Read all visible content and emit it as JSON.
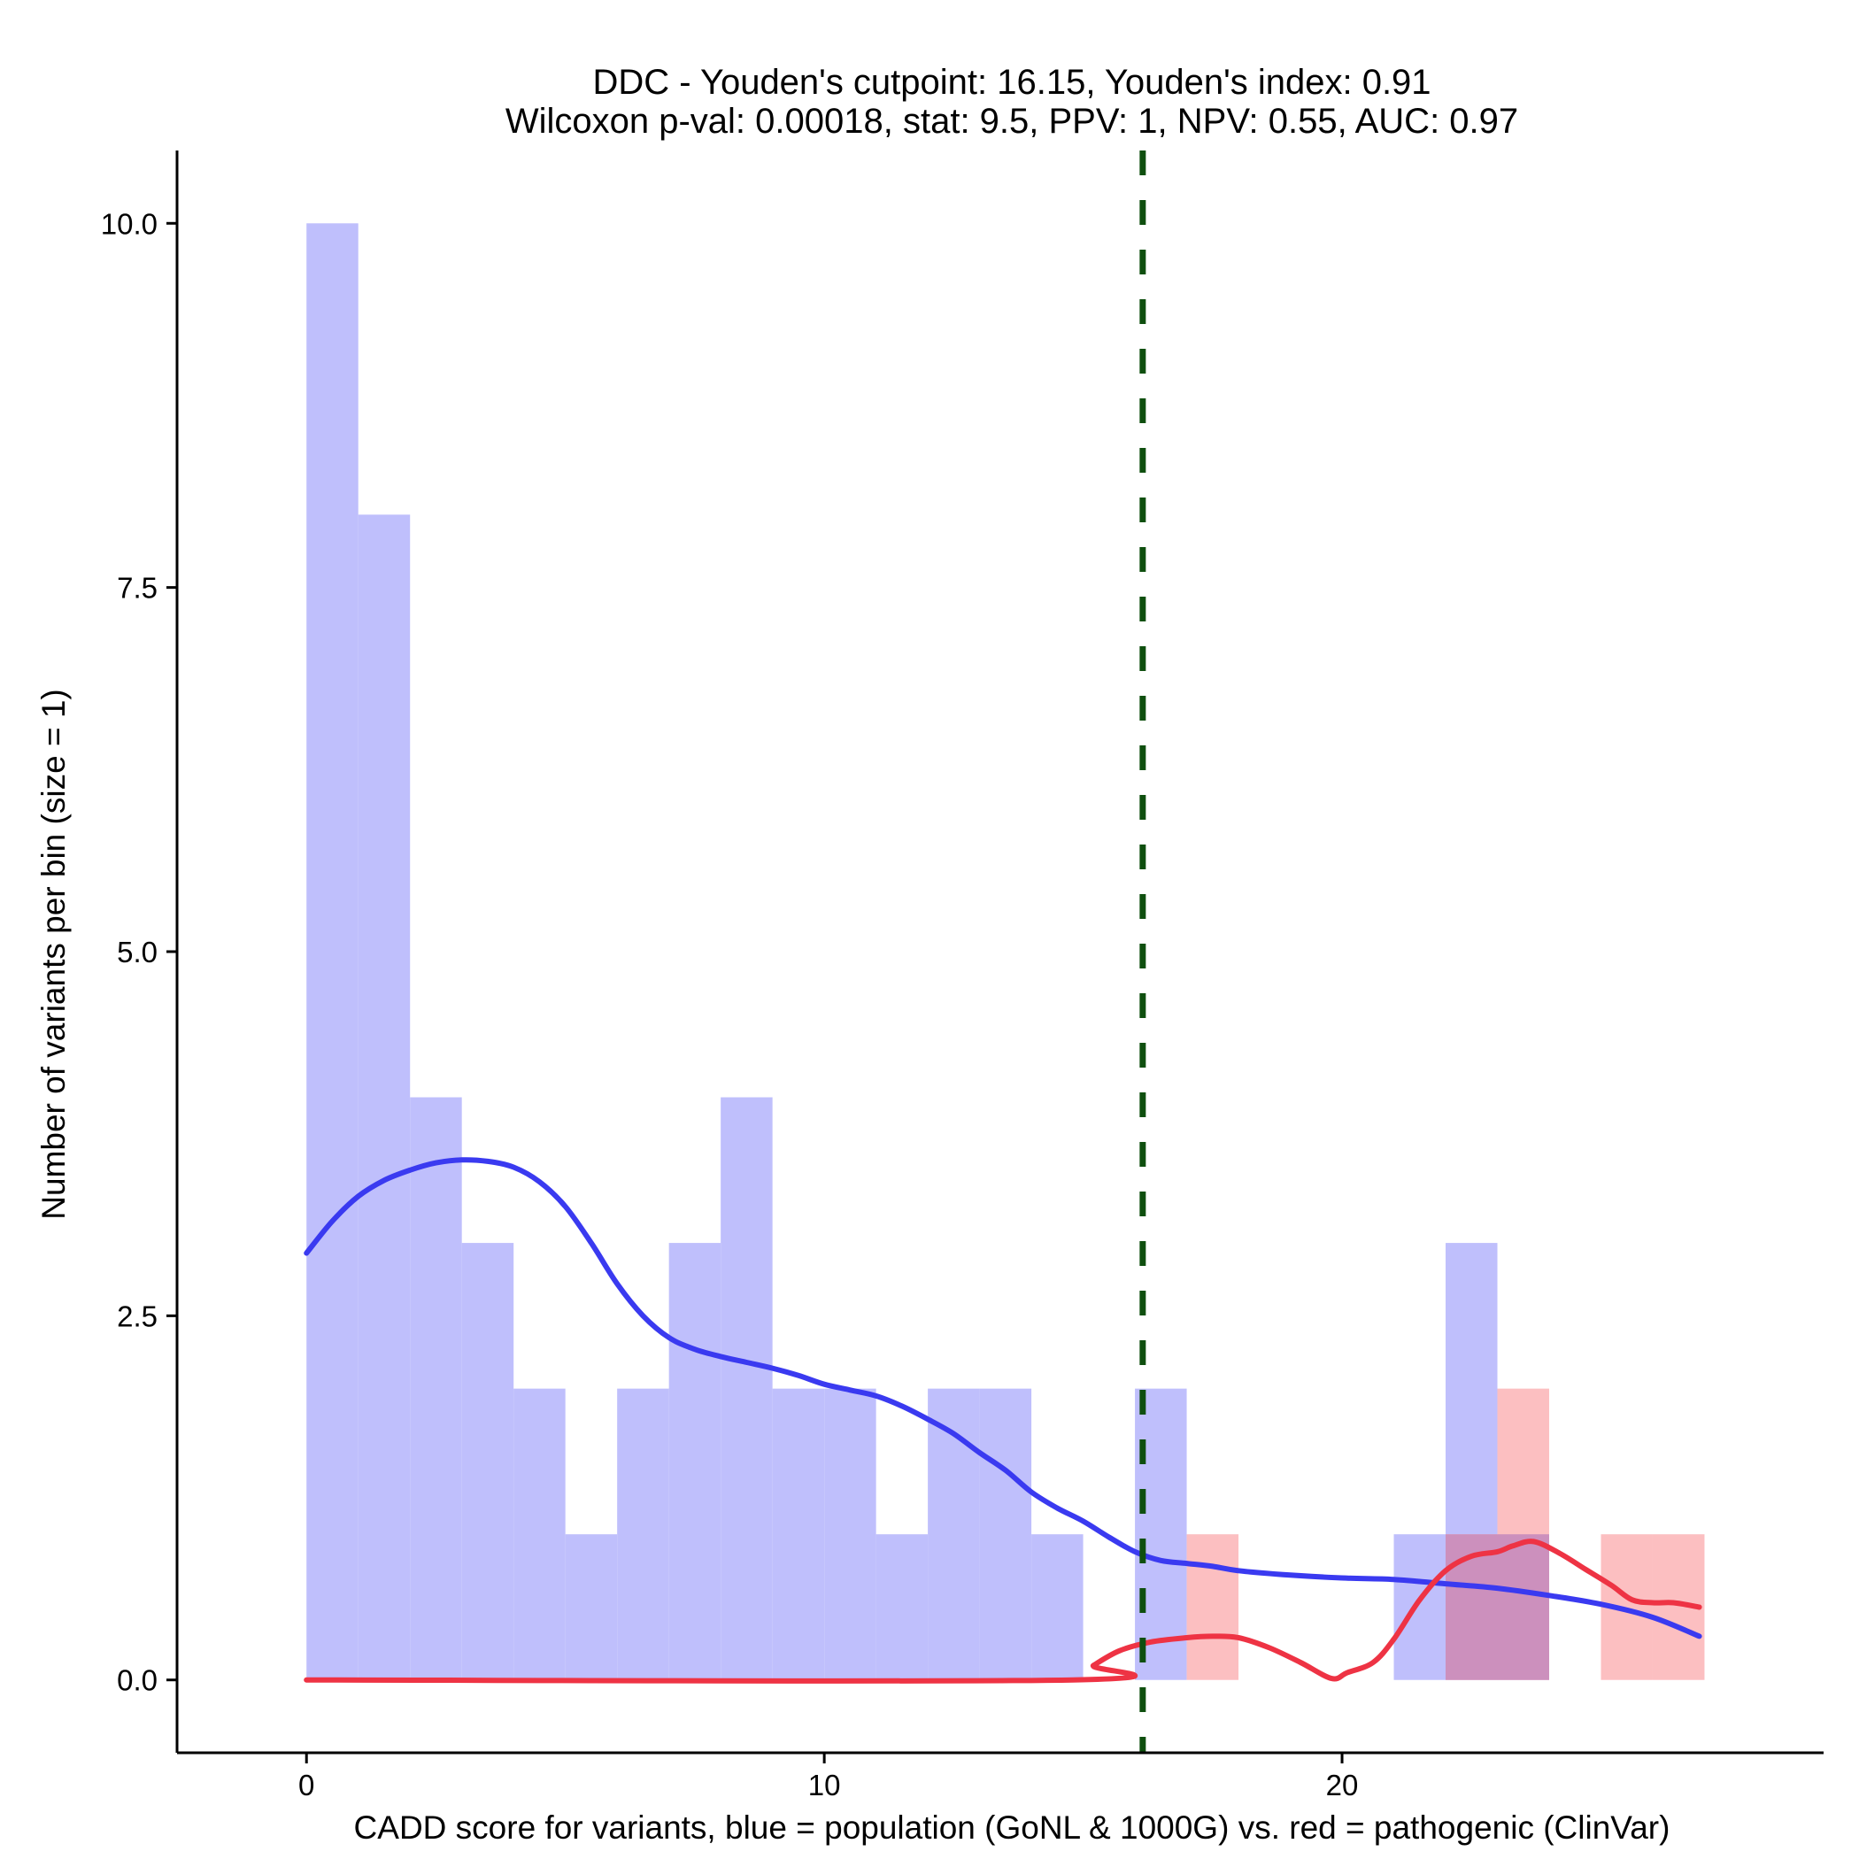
{
  "chart_data": {
    "type": "histogram",
    "title_lines": [
      "DDC - Youden's cutpoint: 16.15, Youden's index: 0.91",
      "Wilcoxon p-val: 0.00018, stat: 9.5, PPV: 1, NPV: 0.55, AUC: 0.97"
    ],
    "xlabel": "CADD score for variants, blue = population (GoNL & 1000G) vs. red = pathogenic (ClinVar)",
    "ylabel": "Number of variants per bin (size = 1)",
    "xlim": [
      -2.5,
      29.3
    ],
    "ylim": [
      -0.5,
      10.5
    ],
    "x_ticks": [
      0,
      10,
      20
    ],
    "x_tick_labels": [
      "0",
      "10",
      "20"
    ],
    "y_ticks": [
      0,
      2.5,
      5,
      7.5,
      10
    ],
    "y_tick_labels": [
      "0.0",
      "2.5",
      "5.0",
      "7.5",
      "10.0"
    ],
    "cutpoint": 16.15,
    "colors": {
      "population_bar": "#bfbffc",
      "pathogenic_bar": "#fcbfc1",
      "overlap_bar": "#cc90bd",
      "population_line": "#3a3af0",
      "pathogenic_line": "#ee3344",
      "cutpoint_line": "#0f4f0f",
      "axis": "#000000"
    },
    "series": [
      {
        "name": "population",
        "bins": [
          {
            "x0": 0,
            "x1": 1,
            "count": 10
          },
          {
            "x0": 1,
            "x1": 2,
            "count": 8
          },
          {
            "x0": 2,
            "x1": 3,
            "count": 4
          },
          {
            "x0": 3,
            "x1": 4,
            "count": 3
          },
          {
            "x0": 4,
            "x1": 5,
            "count": 2
          },
          {
            "x0": 5,
            "x1": 6,
            "count": 1
          },
          {
            "x0": 6,
            "x1": 7,
            "count": 2
          },
          {
            "x0": 7,
            "x1": 8,
            "count": 3
          },
          {
            "x0": 8,
            "x1": 9,
            "count": 4
          },
          {
            "x0": 9,
            "x1": 10,
            "count": 2
          },
          {
            "x0": 10,
            "x1": 11,
            "count": 2
          },
          {
            "x0": 11,
            "x1": 12,
            "count": 1
          },
          {
            "x0": 12,
            "x1": 13,
            "count": 2
          },
          {
            "x0": 13,
            "x1": 14,
            "count": 2
          },
          {
            "x0": 14,
            "x1": 15,
            "count": 1
          },
          {
            "x0": 16,
            "x1": 17,
            "count": 2
          },
          {
            "x0": 21,
            "x1": 22,
            "count": 1
          },
          {
            "x0": 22,
            "x1": 23,
            "count": 3
          },
          {
            "x0": 23,
            "x1": 24,
            "count": 1
          }
        ],
        "density": [
          [
            0.0,
            2.93
          ],
          [
            0.5,
            3.15
          ],
          [
            1.0,
            3.32
          ],
          [
            1.5,
            3.43
          ],
          [
            2.0,
            3.5
          ],
          [
            2.5,
            3.55
          ],
          [
            3.0,
            3.57
          ],
          [
            3.5,
            3.56
          ],
          [
            4.0,
            3.52
          ],
          [
            4.5,
            3.42
          ],
          [
            5.0,
            3.25
          ],
          [
            5.5,
            3.0
          ],
          [
            6.0,
            2.72
          ],
          [
            6.5,
            2.5
          ],
          [
            7.0,
            2.35
          ],
          [
            7.5,
            2.27
          ],
          [
            8.0,
            2.22
          ],
          [
            8.5,
            2.18
          ],
          [
            9.0,
            2.14
          ],
          [
            9.5,
            2.09
          ],
          [
            10.0,
            2.03
          ],
          [
            10.5,
            1.99
          ],
          [
            11.0,
            1.95
          ],
          [
            11.5,
            1.88
          ],
          [
            12.0,
            1.79
          ],
          [
            12.5,
            1.69
          ],
          [
            13.0,
            1.56
          ],
          [
            13.5,
            1.44
          ],
          [
            14.0,
            1.29
          ],
          [
            14.5,
            1.18
          ],
          [
            15.0,
            1.09
          ],
          [
            15.5,
            0.98
          ],
          [
            16.0,
            0.88
          ],
          [
            16.5,
            0.82
          ],
          [
            17.0,
            0.8
          ],
          [
            17.5,
            0.78
          ],
          [
            18.0,
            0.75
          ],
          [
            19.0,
            0.72
          ],
          [
            20.0,
            0.7
          ],
          [
            21.0,
            0.69
          ],
          [
            22.0,
            0.66
          ],
          [
            23.0,
            0.63
          ],
          [
            24.0,
            0.58
          ],
          [
            25.0,
            0.52
          ],
          [
            26.0,
            0.43
          ],
          [
            26.9,
            0.3
          ]
        ]
      },
      {
        "name": "pathogenic",
        "bins": [
          {
            "x0": 17,
            "x1": 18,
            "count": 1
          },
          {
            "x0": 22,
            "x1": 23,
            "count": 1
          },
          {
            "x0": 23,
            "x1": 24,
            "count": 2
          },
          {
            "x0": 25,
            "x1": 26,
            "count": 1
          },
          {
            "x0": 26,
            "x1": 27,
            "count": 1
          }
        ],
        "density": [
          [
            0.0,
            0.0
          ],
          [
            14.8,
            0.0
          ],
          [
            15.2,
            0.1
          ],
          [
            15.7,
            0.2
          ],
          [
            16.3,
            0.26
          ],
          [
            17.0,
            0.29
          ],
          [
            17.5,
            0.3
          ],
          [
            18.0,
            0.29
          ],
          [
            18.6,
            0.22
          ],
          [
            19.2,
            0.12
          ],
          [
            19.8,
            0.01
          ],
          [
            20.1,
            0.05
          ],
          [
            20.6,
            0.12
          ],
          [
            21.0,
            0.28
          ],
          [
            21.5,
            0.55
          ],
          [
            22.0,
            0.75
          ],
          [
            22.5,
            0.85
          ],
          [
            23.0,
            0.88
          ],
          [
            23.3,
            0.92
          ],
          [
            23.7,
            0.95
          ],
          [
            24.2,
            0.87
          ],
          [
            24.7,
            0.76
          ],
          [
            25.2,
            0.65
          ],
          [
            25.6,
            0.55
          ],
          [
            26.0,
            0.53
          ],
          [
            26.4,
            0.53
          ],
          [
            26.9,
            0.5
          ]
        ]
      }
    ]
  }
}
